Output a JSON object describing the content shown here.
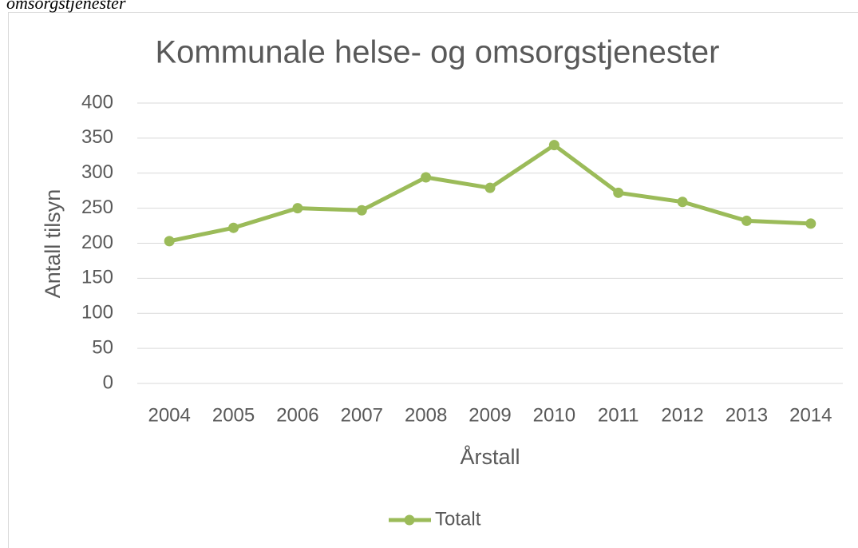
{
  "chart_data": {
    "type": "line",
    "caption": "omsorgstjenester",
    "title": "Kommunale helse- og omsorgstjenester",
    "x_label": "Årstall",
    "y_label": "Antall tilsyn",
    "categories": [
      "2004",
      "2005",
      "2006",
      "2007",
      "2008",
      "2009",
      "2010",
      "2011",
      "2012",
      "2013",
      "2014"
    ],
    "series": [
      {
        "name": "Totalt",
        "color": "#9bbb59",
        "values": [
          203,
          222,
          250,
          247,
          294,
          279,
          340,
          272,
          259,
          232,
          228
        ]
      }
    ],
    "ylim": [
      0,
      400
    ],
    "yticks": [
      0,
      50,
      100,
      150,
      200,
      250,
      300,
      350,
      400
    ],
    "grid": true,
    "legend": "bottom"
  }
}
